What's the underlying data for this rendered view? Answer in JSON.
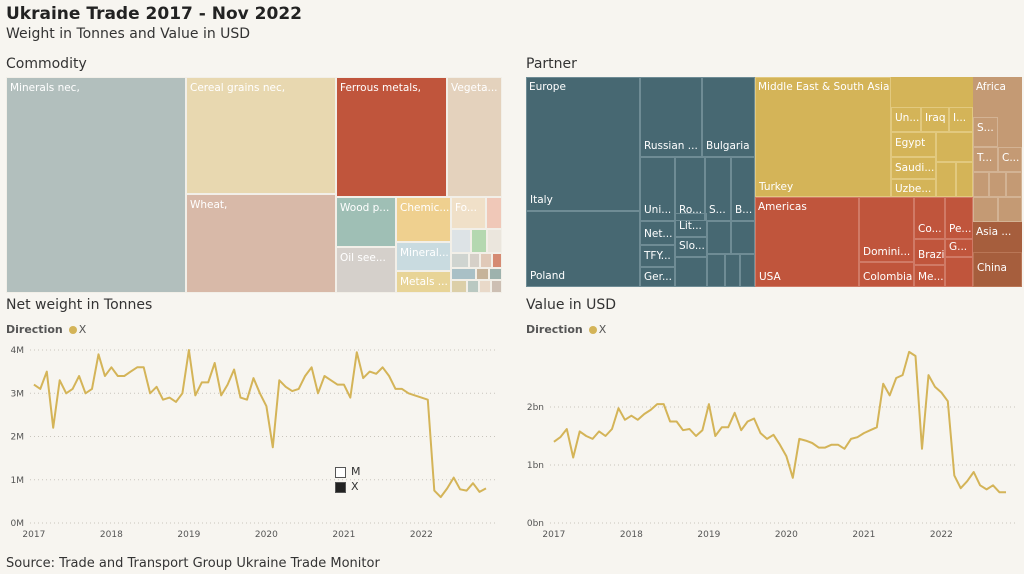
{
  "page": {
    "title": "Ukraine Trade 2017 - Nov 2022",
    "subtitle": "Weight in Tonnes and Value in USD",
    "source": "Source: Trade and Transport Group Ukraine Trade Monitor"
  },
  "commodity": {
    "heading": "Commodity",
    "labels": {
      "minerals": "Minerals nec,",
      "cereal": "Cereal grains nec,",
      "ferrous": "Ferrous metals,",
      "vegeta": "Vegeta...",
      "wheat": "Wheat,",
      "wood": "Wood p...",
      "chemic": "Chemic...",
      "fo": "Fo...",
      "oilsee": "Oil see...",
      "mineral2": "Mineral...",
      "metals": "Metals ..."
    }
  },
  "partner": {
    "heading": "Partner",
    "labels": {
      "europe": "Europe",
      "russian": "Russian ...",
      "bulgaria": "Bulgaria",
      "italy": "Italy",
      "uni": "Uni...",
      "ro": "Ro...",
      "s": "S...",
      "b": "B...",
      "lit": "Lit...",
      "net": "Net...",
      "slo": "Slo...",
      "tfy": "TFY...",
      "poland": "Poland",
      "ger": "Ger...",
      "mesa": "Middle East & South Asia",
      "un": "Un...",
      "iraq": "Iraq",
      "i": "I...",
      "egypt": "Egypt",
      "saudi": "Saudi...",
      "turkey": "Turkey",
      "uzbe": "Uzbe...",
      "americas": "Americas",
      "co": "Co...",
      "pe": "Pe...",
      "domini": "Domini...",
      "brazil": "Brazil",
      "g": "G...",
      "usa": "USA",
      "colombia": "Colombia",
      "me": "Me...",
      "africa": "Africa",
      "af_s": "S...",
      "af_t": "T...",
      "af_c": "C...",
      "asia": "Asia ...",
      "china": "China"
    }
  },
  "weight_chart": {
    "heading": "Net weight in Tonnes",
    "legend_title": "Direction",
    "legend_value": "X",
    "inline_legend": [
      "M",
      "X"
    ]
  },
  "value_chart": {
    "heading": "Value in USD",
    "legend_title": "Direction",
    "legend_value": "X"
  },
  "colors": {
    "line": "#d4b458",
    "europe": "#476872",
    "mesa": "#d4b458",
    "americas": "#c0553c",
    "africa": "#c49a74",
    "asia": "#a65e3d",
    "minerals": "#b2bfbd",
    "cereal": "#e8d8b0",
    "ferrous": "#c0553c",
    "vegeta": "#e4d2bd",
    "wheat": "#d8b9a8"
  },
  "chart_data": [
    {
      "type": "line",
      "series": [
        {
          "name": "X",
          "x": [
            "2017-01",
            "2017-02",
            "2017-03",
            "2017-04",
            "2017-05",
            "2017-06",
            "2017-07",
            "2017-08",
            "2017-09",
            "2017-10",
            "2017-11",
            "2017-12",
            "2018-01",
            "2018-02",
            "2018-03",
            "2018-04",
            "2018-05",
            "2018-06",
            "2018-07",
            "2018-08",
            "2018-09",
            "2018-10",
            "2018-11",
            "2018-12",
            "2019-01",
            "2019-02",
            "2019-03",
            "2019-04",
            "2019-05",
            "2019-06",
            "2019-07",
            "2019-08",
            "2019-09",
            "2019-10",
            "2019-11",
            "2019-12",
            "2020-01",
            "2020-02",
            "2020-03",
            "2020-04",
            "2020-05",
            "2020-06",
            "2020-07",
            "2020-08",
            "2020-09",
            "2020-10",
            "2020-11",
            "2020-12",
            "2021-01",
            "2021-02",
            "2021-03",
            "2021-04",
            "2021-05",
            "2021-06",
            "2021-07",
            "2021-08",
            "2021-09",
            "2021-10",
            "2021-11",
            "2021-12",
            "2022-01",
            "2022-02",
            "2022-03",
            "2022-04",
            "2022-05",
            "2022-06",
            "2022-07",
            "2022-08",
            "2022-09",
            "2022-10",
            "2022-11"
          ],
          "values": [
            3.2,
            3.1,
            3.5,
            2.2,
            3.3,
            3.0,
            3.1,
            3.4,
            3.0,
            3.1,
            3.9,
            3.4,
            3.6,
            3.4,
            3.4,
            3.5,
            3.6,
            3.6,
            3.0,
            3.15,
            2.85,
            2.9,
            2.8,
            3.0,
            4.0,
            2.95,
            3.25,
            3.25,
            3.7,
            2.95,
            3.2,
            3.55,
            2.9,
            2.85,
            3.35,
            3.0,
            2.7,
            1.75,
            3.3,
            3.15,
            3.05,
            3.1,
            3.4,
            3.6,
            3.0,
            3.4,
            3.3,
            3.2,
            3.2,
            2.9,
            3.95,
            3.35,
            3.5,
            3.45,
            3.6,
            3.4,
            3.1,
            3.1,
            3.0,
            2.95,
            2.9,
            2.85,
            0.75,
            0.6,
            0.8,
            1.05,
            0.78,
            0.75,
            0.92,
            0.72,
            0.8
          ]
        }
      ],
      "xlabel": "",
      "ylabel": "",
      "x_ticks": [
        "2017",
        "2018",
        "2019",
        "2020",
        "2021",
        "2022"
      ],
      "y_ticks": [
        "0M",
        "1M",
        "2M",
        "3M",
        "4M"
      ],
      "ylim": [
        0,
        4
      ]
    },
    {
      "type": "line",
      "series": [
        {
          "name": "X",
          "x": [
            "2017-01",
            "2017-02",
            "2017-03",
            "2017-04",
            "2017-05",
            "2017-06",
            "2017-07",
            "2017-08",
            "2017-09",
            "2017-10",
            "2017-11",
            "2017-12",
            "2018-01",
            "2018-02",
            "2018-03",
            "2018-04",
            "2018-05",
            "2018-06",
            "2018-07",
            "2018-08",
            "2018-09",
            "2018-10",
            "2018-11",
            "2018-12",
            "2019-01",
            "2019-02",
            "2019-03",
            "2019-04",
            "2019-05",
            "2019-06",
            "2019-07",
            "2019-08",
            "2019-09",
            "2019-10",
            "2019-11",
            "2019-12",
            "2020-01",
            "2020-02",
            "2020-03",
            "2020-04",
            "2020-05",
            "2020-06",
            "2020-07",
            "2020-08",
            "2020-09",
            "2020-10",
            "2020-11",
            "2020-12",
            "2021-01",
            "2021-02",
            "2021-03",
            "2021-04",
            "2021-05",
            "2021-06",
            "2021-07",
            "2021-08",
            "2021-09",
            "2021-10",
            "2021-11",
            "2021-12",
            "2022-01",
            "2022-02",
            "2022-03",
            "2022-04",
            "2022-05",
            "2022-06",
            "2022-07",
            "2022-08",
            "2022-09",
            "2022-10",
            "2022-11"
          ],
          "values": [
            1.4,
            1.48,
            1.62,
            1.13,
            1.58,
            1.5,
            1.45,
            1.58,
            1.5,
            1.62,
            1.98,
            1.78,
            1.85,
            1.78,
            1.88,
            1.95,
            2.05,
            2.05,
            1.75,
            1.75,
            1.6,
            1.62,
            1.5,
            1.6,
            2.05,
            1.5,
            1.65,
            1.65,
            1.9,
            1.6,
            1.75,
            1.8,
            1.55,
            1.45,
            1.52,
            1.35,
            1.15,
            0.78,
            1.45,
            1.42,
            1.38,
            1.3,
            1.3,
            1.35,
            1.35,
            1.28,
            1.45,
            1.48,
            1.55,
            1.6,
            1.65,
            2.4,
            2.2,
            2.5,
            2.55,
            2.95,
            2.88,
            1.28,
            2.55,
            2.35,
            2.25,
            2.1,
            0.82,
            0.6,
            0.72,
            0.88,
            0.65,
            0.58,
            0.65,
            0.53,
            0.53
          ]
        }
      ],
      "xlabel": "",
      "ylabel": "",
      "x_ticks": [
        "2017",
        "2018",
        "2019",
        "2020",
        "2021",
        "2022"
      ],
      "y_ticks": [
        "0bn",
        "1bn",
        "2bn"
      ],
      "ylim": [
        0,
        3
      ]
    }
  ]
}
